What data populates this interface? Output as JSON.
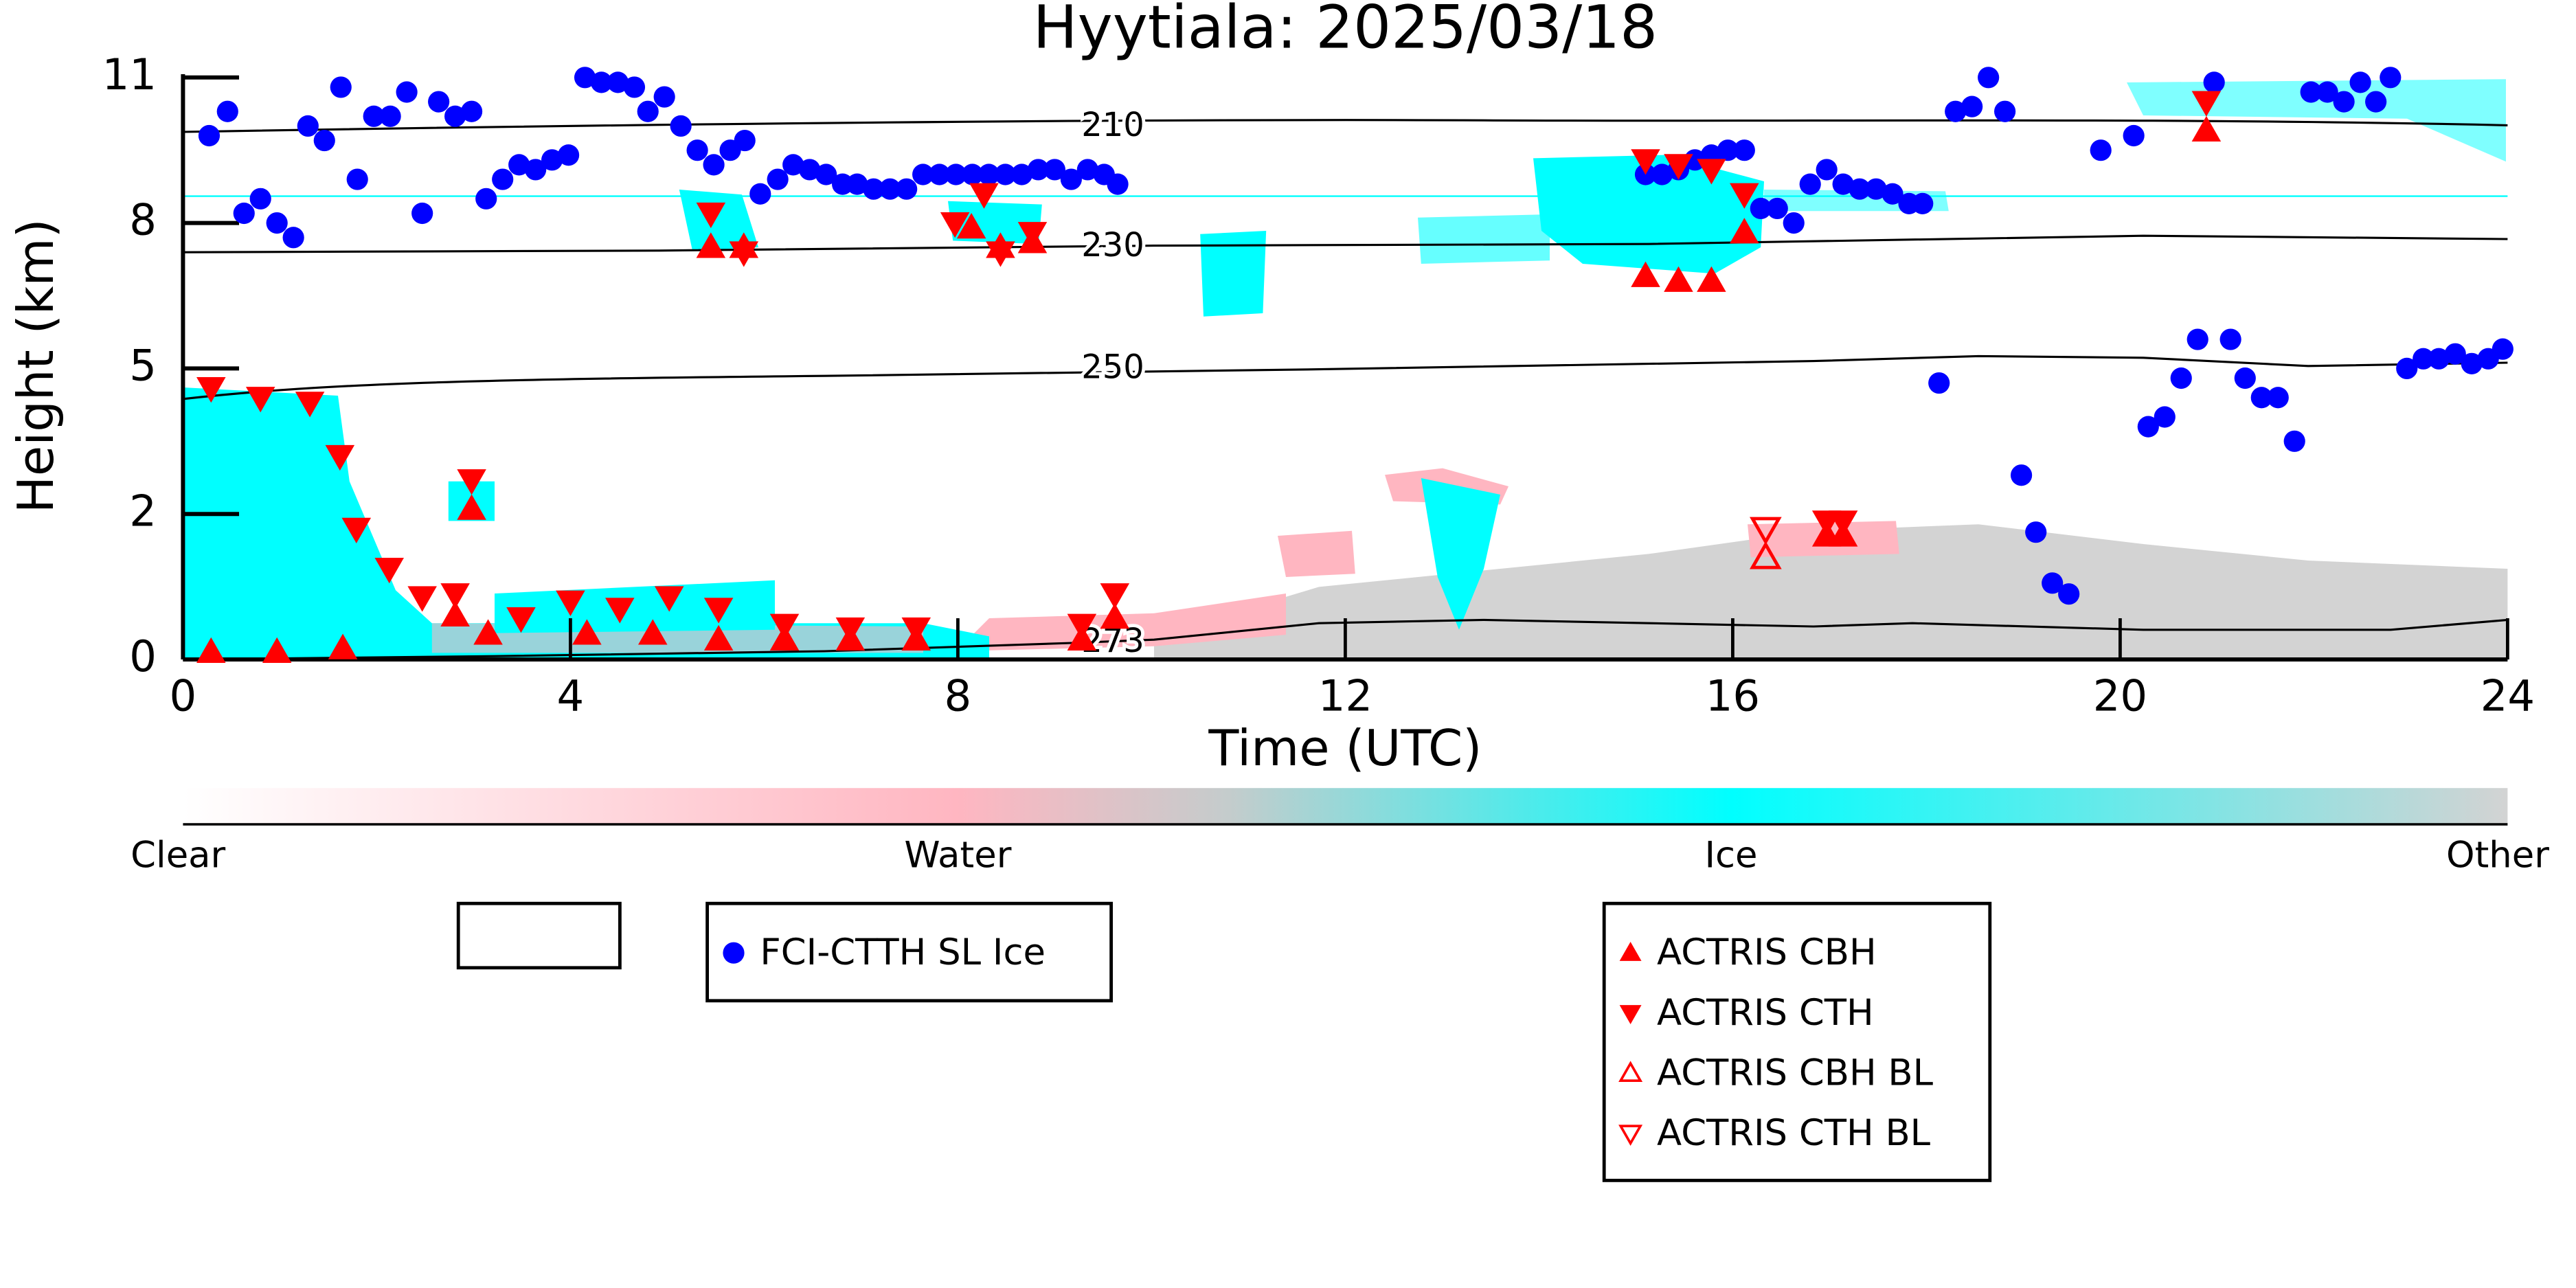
{
  "chart_data": {
    "type": "scatter",
    "title": "Hyytiala: 2025/03/18",
    "xlabel": "Time (UTC)",
    "ylabel": "Height (km)",
    "xlim": [
      0,
      24
    ],
    "xticks": [
      0,
      4,
      8,
      12,
      16,
      20,
      24
    ],
    "ylim": [
      0,
      11
    ],
    "yticks": [
      0,
      2,
      5,
      8,
      11
    ],
    "isotherm_labels": [
      "210",
      "230",
      "250",
      "273"
    ],
    "colorbar_labels": [
      "Clear",
      "Water",
      "Ice",
      "Other"
    ],
    "series": [
      {
        "name": "FCI-CTTH SL Ice",
        "color": "#0000ff",
        "marker": "circle",
        "filled": true,
        "x": [
          0.27,
          0.46,
          0.63,
          0.8,
          0.97,
          1.14,
          1.29,
          1.46,
          1.63,
          1.8,
          1.97,
          2.14,
          2.31,
          2.47,
          2.64,
          2.81,
          2.98,
          3.13,
          3.3,
          3.47,
          3.64,
          3.81,
          3.98,
          4.15,
          4.32,
          4.49,
          4.66,
          4.8,
          4.97,
          5.14,
          5.31,
          5.48,
          5.65,
          5.8,
          5.96,
          6.14,
          6.3,
          6.47,
          6.64,
          6.81,
          6.96,
          7.13,
          7.3,
          7.47,
          7.64,
          7.81,
          7.98,
          8.15,
          8.32,
          8.49,
          8.66,
          8.83,
          9.0,
          9.17,
          9.34,
          9.51,
          9.65,
          15.1,
          15.27,
          15.44,
          15.61,
          15.78,
          15.95,
          16.12,
          16.29,
          16.46,
          16.63,
          16.8,
          16.97,
          17.14,
          17.31,
          17.48,
          17.65,
          17.82,
          17.96,
          18.13,
          18.3,
          18.47,
          18.64,
          18.81,
          18.98,
          19.13,
          19.3,
          19.47,
          19.8,
          20.14,
          20.29,
          20.46,
          20.63,
          20.8,
          20.97,
          21.14,
          21.29,
          21.46,
          21.63,
          21.8,
          21.97,
          22.14,
          22.31,
          22.48,
          22.64,
          22.79,
          22.96,
          23.13,
          23.29,
          23.46,
          23.63,
          23.8,
          23.95
        ],
        "values": [
          9.8,
          10.3,
          8.2,
          8.5,
          8.0,
          7.7,
          10.0,
          9.7,
          10.8,
          8.9,
          10.2,
          10.2,
          10.7,
          8.2,
          10.5,
          10.2,
          10.3,
          8.5,
          8.9,
          9.2,
          9.1,
          9.3,
          9.4,
          11.0,
          10.9,
          10.9,
          10.8,
          10.3,
          10.6,
          10.0,
          9.5,
          9.2,
          9.5,
          9.7,
          8.6,
          8.9,
          9.2,
          9.1,
          9.0,
          8.8,
          8.8,
          8.7,
          8.7,
          8.7,
          9.0,
          9.0,
          9.0,
          9.0,
          9.0,
          9.0,
          9.0,
          9.1,
          9.1,
          8.9,
          9.1,
          9.0,
          8.8,
          9.0,
          9.0,
          9.1,
          9.3,
          9.4,
          9.5,
          9.5,
          8.3,
          8.3,
          8.0,
          8.8,
          9.1,
          8.8,
          8.7,
          8.7,
          8.6,
          8.4,
          8.4,
          4.7,
          10.3,
          10.4,
          11.0,
          10.3,
          2.8,
          1.75,
          1.05,
          0.9,
          9.5,
          9.8,
          3.8,
          4.0,
          4.8,
          5.6,
          10.9,
          5.6,
          4.8,
          4.4,
          4.4,
          3.5,
          10.7,
          10.7,
          10.5,
          10.9,
          10.5,
          11.0,
          5.0,
          5.2,
          5.2,
          5.3,
          5.1,
          5.2,
          5.4
        ]
      },
      {
        "name": "ACTRIS CBH",
        "color": "#ff0000",
        "marker": "triangle-up",
        "filled": true,
        "x": [
          0.29,
          0.97,
          1.65,
          2.81,
          3.15,
          2.98,
          4.17,
          4.85,
          5.53,
          5.45,
          5.79,
          6.21,
          6.89,
          7.57,
          8.14,
          8.44,
          8.77,
          9.28,
          9.62,
          15.1,
          15.44,
          15.78,
          16.12,
          16.97,
          17.14,
          20.89
        ],
        "values": [
          0.1,
          0.1,
          0.15,
          0.6,
          0.35,
          2.1,
          0.35,
          0.35,
          0.27,
          7.5,
          7.5,
          0.27,
          0.27,
          0.27,
          7.9,
          7.5,
          7.6,
          0.27,
          0.57,
          6.9,
          6.8,
          6.8,
          7.8,
          1.7,
          1.7,
          9.9
        ]
      },
      {
        "name": "ACTRIS CTH",
        "color": "#ff0000",
        "marker": "triangle-down",
        "filled": true,
        "x": [
          0.29,
          0.8,
          1.31,
          1.62,
          1.79,
          2.13,
          2.47,
          2.81,
          2.98,
          3.49,
          4.0,
          4.51,
          5.02,
          5.53,
          5.45,
          5.79,
          6.21,
          6.89,
          7.57,
          7.97,
          8.27,
          8.44,
          8.77,
          9.28,
          9.62,
          15.1,
          15.44,
          15.78,
          16.12,
          16.97,
          17.14,
          20.89
        ],
        "values": [
          4.6,
          4.4,
          4.3,
          3.2,
          1.8,
          1.25,
          0.86,
          0.9,
          2.7,
          0.57,
          0.8,
          0.7,
          0.86,
          0.7,
          8.2,
          7.4,
          0.48,
          0.43,
          0.43,
          8.0,
          8.6,
          7.4,
          7.8,
          0.48,
          0.9,
          9.3,
          9.2,
          9.1,
          8.6,
          1.9,
          1.9,
          10.5
        ]
      },
      {
        "name": "ACTRIS CBH BL",
        "color": "#ff0000",
        "marker": "triangle-up",
        "filled": false,
        "x": [
          16.34
        ],
        "values": [
          1.4
        ]
      },
      {
        "name": "ACTRIS CTH BL",
        "color": "#ff0000",
        "marker": "triangle-down",
        "filled": false,
        "x": [
          16.34
        ],
        "values": [
          1.8
        ]
      }
    ]
  }
}
